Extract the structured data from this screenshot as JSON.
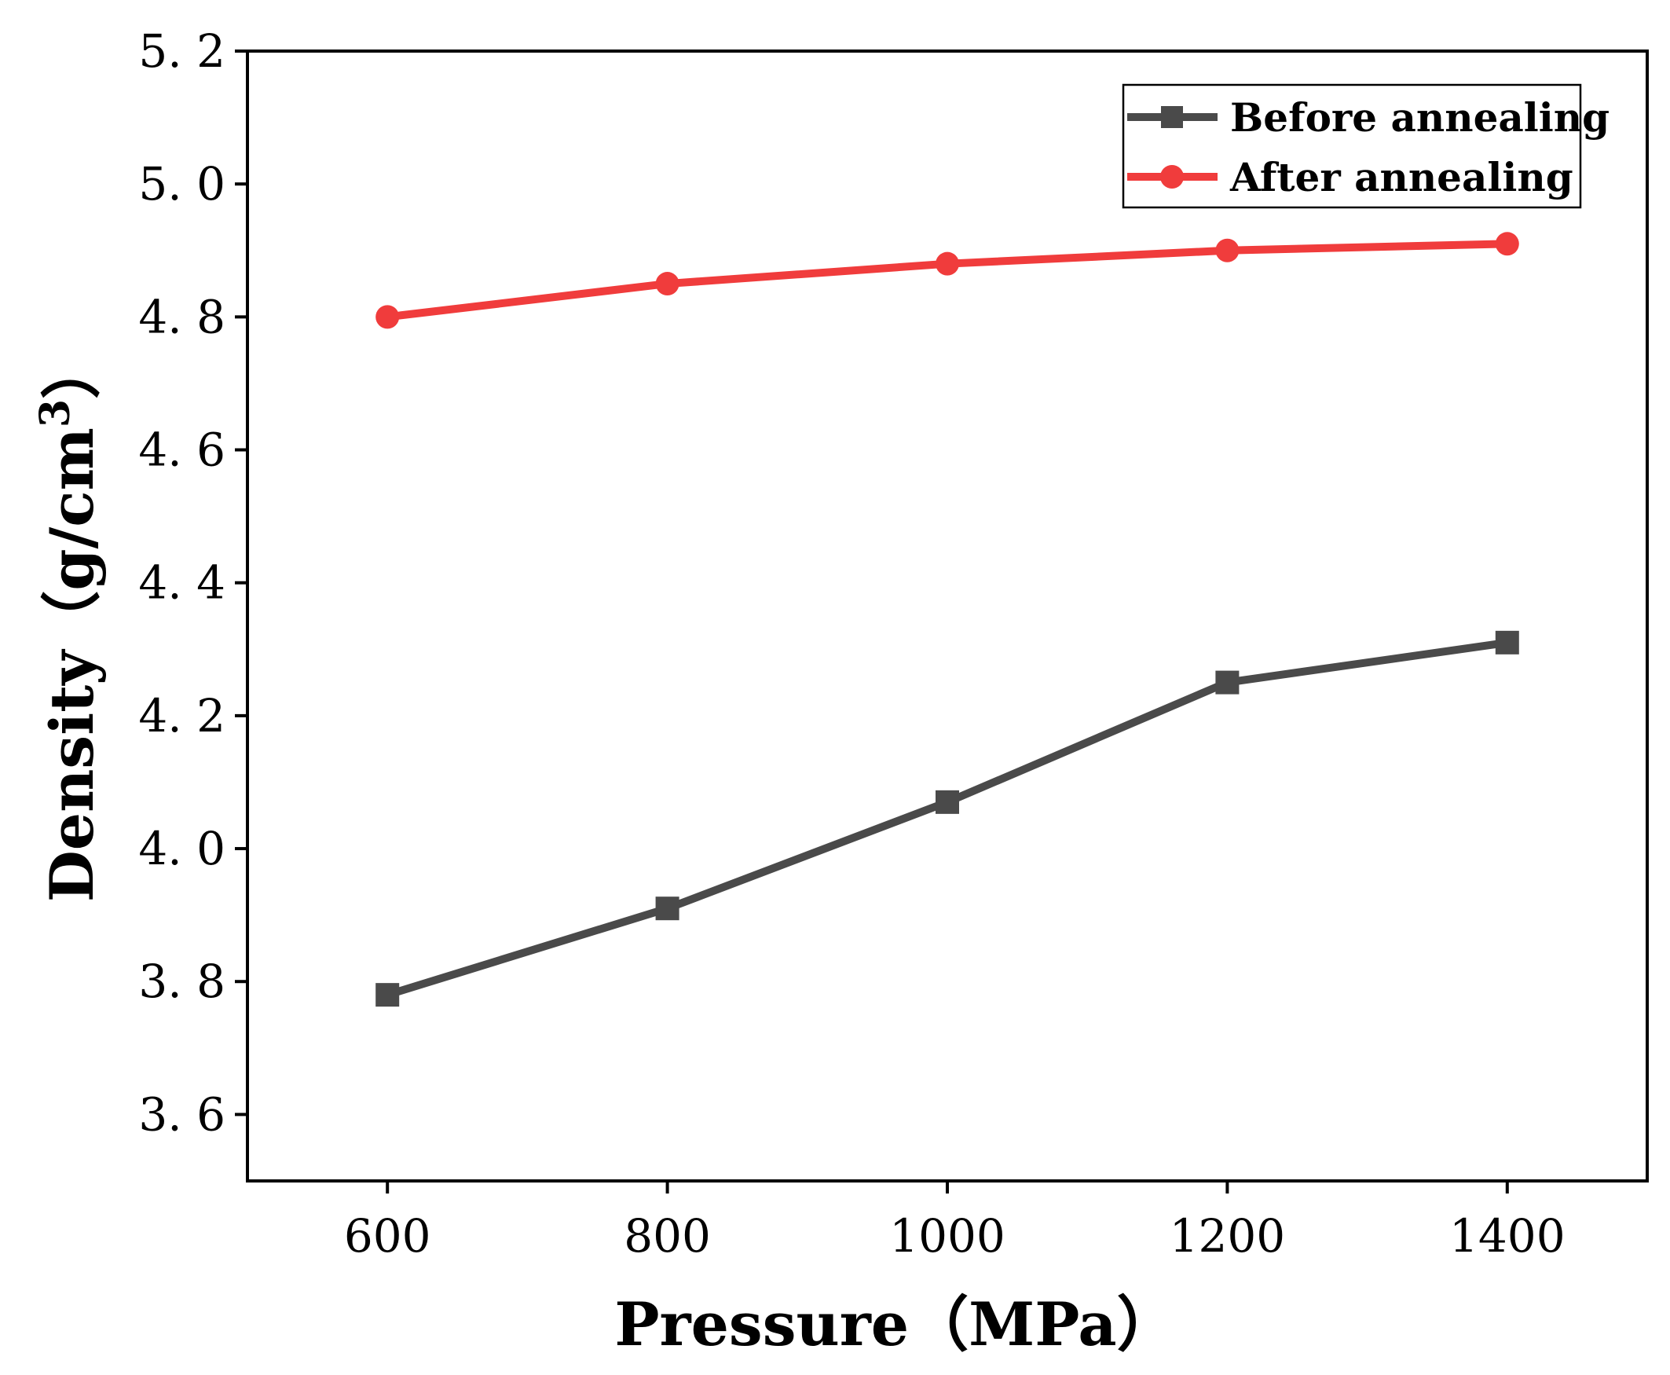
{
  "chart_data": {
    "type": "line",
    "title": "",
    "xlabel": "Pressure（MPa）",
    "ylabel": "Density（g/cm",
    "ylabel_superscript": "3",
    "ylabel_close": "）",
    "x": [
      600,
      800,
      1000,
      1200,
      1400
    ],
    "xlim": [
      500,
      1500
    ],
    "ylim": [
      3.5,
      5.2
    ],
    "x_ticks": [
      600,
      800,
      1000,
      1200,
      1400
    ],
    "x_tick_labels": [
      "600",
      "800",
      "1000",
      "1200",
      "1400"
    ],
    "y_ticks": [
      3.6,
      3.8,
      4.0,
      4.2,
      4.4,
      4.6,
      4.8,
      5.0,
      5.2
    ],
    "y_tick_labels": [
      "3. 6",
      "3. 8",
      "4. 0",
      "4. 2",
      "4. 4",
      "4. 6",
      "4. 8",
      "5. 0",
      "5. 2"
    ],
    "grid": false,
    "legend_position": "top-right",
    "series": [
      {
        "name": "Before annealing",
        "color": "#4a4a4a",
        "marker": "square",
        "values": [
          3.78,
          3.91,
          4.07,
          4.25,
          4.31
        ]
      },
      {
        "name": "After annealing",
        "color": "#f03c3c",
        "marker": "circle",
        "values": [
          4.8,
          4.85,
          4.88,
          4.9,
          4.91
        ]
      }
    ]
  }
}
